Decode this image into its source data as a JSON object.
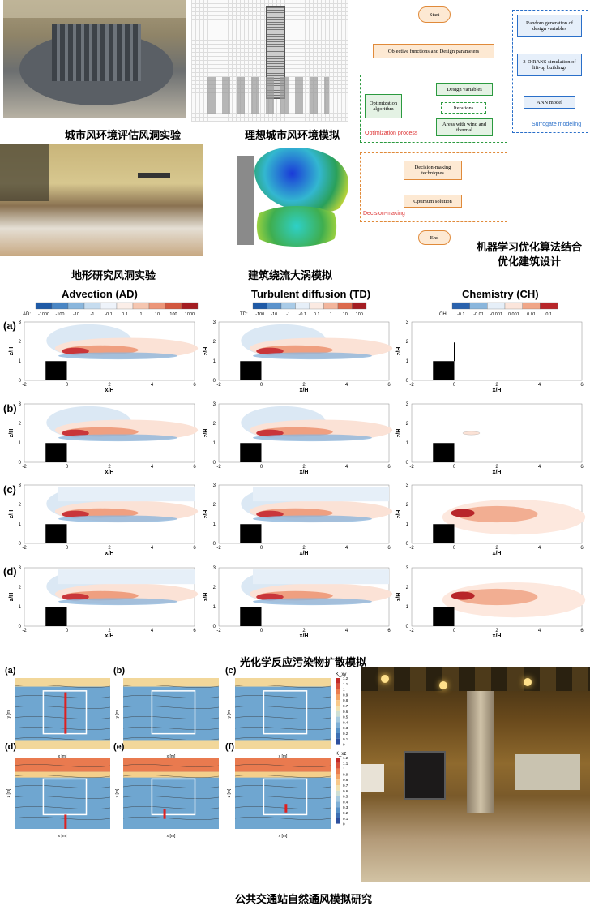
{
  "top": {
    "captions": {
      "wind_tunnel_city": "城市风环境评估风洞实验",
      "ideal_city_sim": "理想城市风环境模拟",
      "terrain_tunnel": "地形研究风洞实验",
      "vortex_sim": "建筑绕流大涡模拟",
      "ml_line1": "机器学习优化算法结合",
      "ml_line2": "优化建筑设计"
    },
    "flowchart": {
      "start": "Start",
      "objectives": "Objective functions and Design parameters",
      "optimization_algorithm": "Optimization algorithm",
      "design_variables": "Design variables",
      "iterations": "Iterations",
      "areas": "Areas with wind and thermal",
      "optimization_process": "Optimization process",
      "decision_techniques": "Decision-making techniques",
      "optimum": "Optimum solution",
      "decision_making": "Decision-making",
      "end": "End",
      "random_gen": "Random generation of design variables",
      "rans": "3-D RANS simulation of lift-up buildings",
      "ann": "ANN model",
      "surrogate": "Surrogate modeling"
    }
  },
  "middle": {
    "headers": {
      "ad": "Advection (AD)",
      "td": "Turbulent diffusion (TD)",
      "ch": "Chemistry (CH)"
    },
    "colorbars": {
      "ad_prefix": "AD:",
      "ad_ticks": [
        "-1000",
        "-100",
        "-10",
        "-1",
        "-0.1",
        "0.1",
        "1",
        "10",
        "100",
        "1000"
      ],
      "td_prefix": "TD:",
      "td_ticks": [
        "-100",
        "-10",
        "-1",
        "-0.1",
        "0.1",
        "1",
        "10",
        "100"
      ],
      "ch_prefix": "CH:",
      "ch_ticks": [
        "-0.1",
        "-0.01",
        "-0.001",
        "0.001",
        "0.01",
        "0.1"
      ]
    },
    "row_labels": [
      "(a)",
      "(b)",
      "(c)",
      "(d)"
    ],
    "x_ticks": [
      "-2",
      "0",
      "2",
      "4",
      "6"
    ],
    "y_ticks": [
      "0",
      "1",
      "2",
      "3"
    ],
    "xlabel": "x/H",
    "ylabel": "z/H",
    "caption": "光化学反应污染物扩散模拟"
  },
  "bottom": {
    "panel_labels": [
      "(a)",
      "(b)",
      "(c)",
      "(d)",
      "(e)",
      "(f)"
    ],
    "k_top": "K_xy",
    "k_bottom": "K_xz",
    "k_ticks": [
      "1.2",
      "1.1",
      "1",
      "0.9",
      "0.8",
      "0.7",
      "0.6",
      "0.5",
      "0.4",
      "0.3",
      "0.2",
      "0.1",
      "0"
    ],
    "xlabel": "x [m]",
    "ylabel_top": "y [m]",
    "ylabel_bottom": "z [m]",
    "caption": "公共交通站自然通风模拟研究"
  }
}
